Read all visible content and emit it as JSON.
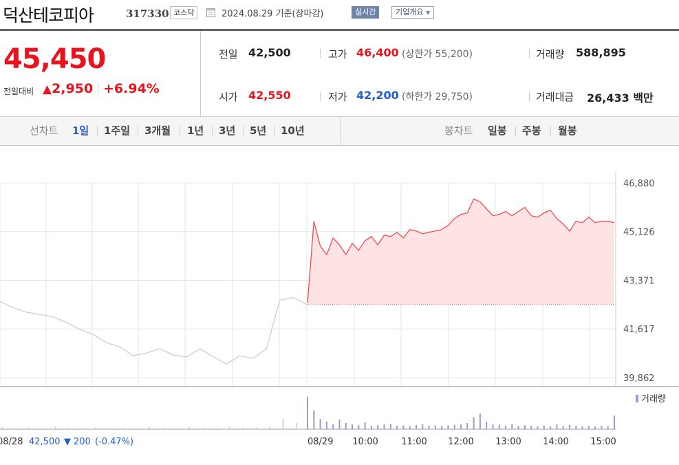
{
  "header": {
    "stock_name": "덕산테코피아",
    "stock_code": "317330",
    "market": "코스닥",
    "date_text": "2024.08.29 기준(장마감)",
    "realtime_label": "실시간",
    "company_label": "기업개요"
  },
  "price": {
    "current": "45,450",
    "change_label": "전일대비",
    "change_value": "2,950",
    "change_percent": "+6.94%"
  },
  "summary": {
    "prev_close_label": "전일",
    "prev_close": "42,500",
    "high_label": "고가",
    "high": "46,400",
    "upper_limit_text": "(상한가 55,200)",
    "volume_label": "거래량",
    "volume": "588,895",
    "open_label": "시가",
    "open": "42,550",
    "low_label": "저가",
    "low": "42,200",
    "lower_limit_text": "(하한가 29,750)",
    "amount_label": "거래대금",
    "amount": "26,433",
    "amount_unit": "백만"
  },
  "tabs": {
    "line_label": "선차트",
    "periods": [
      "1일",
      "1주일",
      "3개월",
      "1년",
      "3년",
      "5년",
      "10년"
    ],
    "active_period": "1일",
    "candle_label": "봉차트",
    "candles": [
      "일봉",
      "주봉",
      "월봉"
    ]
  },
  "colors": {
    "up": "#e8141d",
    "down": "#1e60c9",
    "today_line": "#f24b4f",
    "today_fill": "#fde3e3",
    "prev_line": "#c9c9c9",
    "volume": "#a994cc"
  },
  "chart_data": {
    "type": "line",
    "y_ticks": [
      "46,880",
      "45,126",
      "43,371",
      "41,617",
      "39,862"
    ],
    "y_tick_values": [
      46880,
      45126,
      43371,
      41617,
      39862
    ],
    "ylim": [
      39862,
      46880
    ],
    "prev_day": {
      "date_label": "08/28",
      "close": "42,500",
      "change": "200",
      "change_pct": "(-0.47%)",
      "values": [
        42600,
        42380,
        42220,
        42140,
        42050,
        41850,
        41600,
        41420,
        41120,
        40970,
        40650,
        40750,
        40900,
        40680,
        40600,
        40900,
        40620,
        40350,
        40650,
        40560,
        40900,
        42650,
        42750
      ]
    },
    "today": {
      "date_label": "08/29",
      "x_ticks": [
        "10:00",
        "11:00",
        "12:00",
        "13:00",
        "14:00",
        "15:00"
      ],
      "base": 42500,
      "values": [
        42550,
        45500,
        44600,
        44300,
        44900,
        44650,
        44300,
        44700,
        44450,
        44800,
        44950,
        44650,
        45000,
        44950,
        45100,
        44900,
        45200,
        45150,
        45050,
        45100,
        45150,
        45200,
        45350,
        45600,
        45750,
        45800,
        46300,
        46200,
        45950,
        45700,
        45750,
        45850,
        45700,
        45850,
        46000,
        45700,
        45650,
        45800,
        45900,
        45600,
        45400,
        45150,
        45500,
        45450,
        45650,
        45450,
        45500,
        45500,
        45450
      ],
      "close": 45450
    },
    "volume_label": "거래량",
    "volume_today": [
      95,
      55,
      30,
      22,
      15,
      28,
      18,
      14,
      12,
      20,
      10,
      12,
      14,
      16,
      10,
      11,
      9,
      12,
      14,
      10,
      11,
      10,
      12,
      13,
      14,
      18,
      35,
      45,
      22,
      14,
      13,
      10,
      15,
      9,
      12,
      10,
      9,
      11,
      8,
      14,
      9,
      12,
      10,
      8,
      9,
      8,
      10,
      9,
      40
    ],
    "volume_prev": [
      6,
      4,
      5,
      3,
      8,
      5,
      4,
      6,
      4,
      5,
      3,
      7,
      5,
      4,
      6,
      5,
      4,
      8,
      5,
      6,
      7,
      30,
      18
    ]
  }
}
